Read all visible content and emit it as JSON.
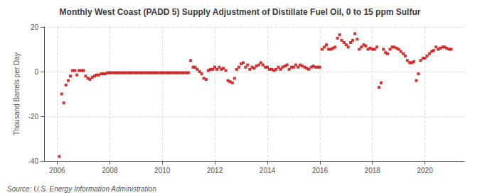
{
  "chart_data": {
    "type": "scatter",
    "title": "Monthly West Coast (PADD 5) Supply Adjustment of Distillate Fuel Oil, 0 to 15 ppm Sulfur",
    "ylabel": "Thousand Barrels per Day",
    "annotations": [
      "Source: U.S. Energy Information Administration"
    ],
    "color": "#cc0000",
    "marker": "square",
    "grid": true,
    "xlim": [
      2005.5,
      2021.5
    ],
    "xticks": [
      2006,
      2008,
      2010,
      2012,
      2014,
      2016,
      2018,
      2020
    ],
    "ylim": [
      -40,
      20
    ],
    "yticks": [
      -40,
      -20,
      0,
      20
    ],
    "x": [
      2006.08,
      2006.17,
      2006.25,
      2006.33,
      2006.42,
      2006.5,
      2006.58,
      2006.67,
      2006.75,
      2006.83,
      2006.92,
      2007.0,
      2007.08,
      2007.17,
      2007.25,
      2007.33,
      2007.42,
      2007.5,
      2007.58,
      2007.67,
      2007.75,
      2007.83,
      2007.92,
      2008.0,
      2008.08,
      2008.17,
      2008.25,
      2008.33,
      2008.42,
      2008.5,
      2008.58,
      2008.67,
      2008.75,
      2008.83,
      2008.92,
      2009.0,
      2009.08,
      2009.17,
      2009.25,
      2009.33,
      2009.42,
      2009.5,
      2009.58,
      2009.67,
      2009.75,
      2009.83,
      2009.92,
      2010.0,
      2010.08,
      2010.17,
      2010.25,
      2010.33,
      2010.42,
      2010.5,
      2010.58,
      2010.67,
      2010.75,
      2010.83,
      2010.92,
      2011.0,
      2011.08,
      2011.17,
      2011.25,
      2011.33,
      2011.42,
      2011.5,
      2011.58,
      2011.67,
      2011.75,
      2011.83,
      2011.92,
      2012.0,
      2012.08,
      2012.17,
      2012.25,
      2012.33,
      2012.42,
      2012.5,
      2012.58,
      2012.67,
      2012.75,
      2012.83,
      2012.92,
      2013.0,
      2013.08,
      2013.17,
      2013.25,
      2013.33,
      2013.42,
      2013.5,
      2013.58,
      2013.67,
      2013.75,
      2013.83,
      2013.92,
      2014.0,
      2014.08,
      2014.17,
      2014.25,
      2014.33,
      2014.42,
      2014.5,
      2014.58,
      2014.67,
      2014.75,
      2014.83,
      2014.92,
      2015.0,
      2015.08,
      2015.17,
      2015.25,
      2015.33,
      2015.42,
      2015.5,
      2015.58,
      2015.67,
      2015.75,
      2015.83,
      2015.92,
      2016.0,
      2016.08,
      2016.17,
      2016.25,
      2016.33,
      2016.42,
      2016.5,
      2016.58,
      2016.67,
      2016.75,
      2016.83,
      2016.92,
      2017.0,
      2017.08,
      2017.17,
      2017.25,
      2017.33,
      2017.42,
      2017.5,
      2017.58,
      2017.67,
      2017.75,
      2017.83,
      2017.92,
      2018.0,
      2018.08,
      2018.17,
      2018.25,
      2018.33,
      2018.42,
      2018.5,
      2018.58,
      2018.67,
      2018.75,
      2018.83,
      2018.92,
      2019.0,
      2019.08,
      2019.17,
      2019.25,
      2019.33,
      2019.42,
      2019.5,
      2019.58,
      2019.67,
      2019.75,
      2019.83,
      2019.92,
      2020.0,
      2020.08,
      2020.17,
      2020.25,
      2020.33,
      2020.42,
      2020.5,
      2020.58,
      2020.67,
      2020.75,
      2020.83,
      2020.92,
      2021.0
    ],
    "values": [
      -38.0,
      -10.0,
      -14.0,
      -6.0,
      -4.0,
      -2.0,
      0.5,
      0.5,
      -1.5,
      0.5,
      0.5,
      0.5,
      -2.0,
      -3.0,
      -3.5,
      -2.5,
      -2.0,
      -1.5,
      -1.5,
      -1.0,
      -1.0,
      -1.0,
      -0.5,
      -0.5,
      -0.5,
      -0.5,
      -0.5,
      -0.5,
      -0.5,
      -0.5,
      -0.5,
      -0.5,
      -0.5,
      -0.5,
      -0.5,
      -0.5,
      -0.5,
      -0.5,
      -0.5,
      -0.5,
      -0.5,
      -0.5,
      -0.5,
      -0.5,
      -0.5,
      -0.5,
      -0.5,
      -0.5,
      -0.5,
      -0.5,
      -0.5,
      -0.5,
      -0.5,
      -0.5,
      -0.5,
      -0.5,
      -0.5,
      -0.5,
      -0.5,
      -0.5,
      5.0,
      2.0,
      2.0,
      1.0,
      0.0,
      -1.0,
      -3.0,
      -3.5,
      0.5,
      1.0,
      1.0,
      2.0,
      1.0,
      2.0,
      1.0,
      1.5,
      0.5,
      -4.0,
      -4.5,
      -5.0,
      -3.0,
      1.0,
      2.0,
      3.5,
      4.0,
      2.0,
      3.0,
      1.0,
      2.0,
      1.5,
      2.5,
      3.0,
      4.0,
      3.0,
      2.0,
      2.0,
      1.0,
      1.0,
      0.5,
      1.0,
      2.0,
      1.0,
      2.0,
      2.5,
      3.0,
      1.0,
      2.0,
      2.0,
      3.0,
      2.0,
      3.0,
      2.5,
      2.0,
      1.5,
      1.0,
      2.0,
      2.5,
      2.0,
      2.0,
      2.0,
      10.0,
      11.0,
      12.0,
      10.0,
      10.0,
      10.5,
      11.0,
      15.0,
      16.5,
      14.0,
      13.0,
      12.0,
      11.0,
      13.0,
      14.0,
      17.0,
      14.5,
      10.0,
      11.0,
      12.0,
      11.5,
      10.0,
      10.5,
      10.0,
      10.0,
      11.0,
      -7.0,
      -5.0,
      10.0,
      8.5,
      8.0,
      10.0,
      11.0,
      11.0,
      10.5,
      10.0,
      9.0,
      8.0,
      7.0,
      5.0,
      4.0,
      4.0,
      4.5,
      -4.0,
      -1.0,
      5.0,
      6.0,
      6.0,
      7.0,
      8.0,
      9.0,
      9.5,
      11.0,
      10.0,
      10.5,
      11.0,
      11.0,
      10.5,
      10.0,
      10.0
    ]
  }
}
